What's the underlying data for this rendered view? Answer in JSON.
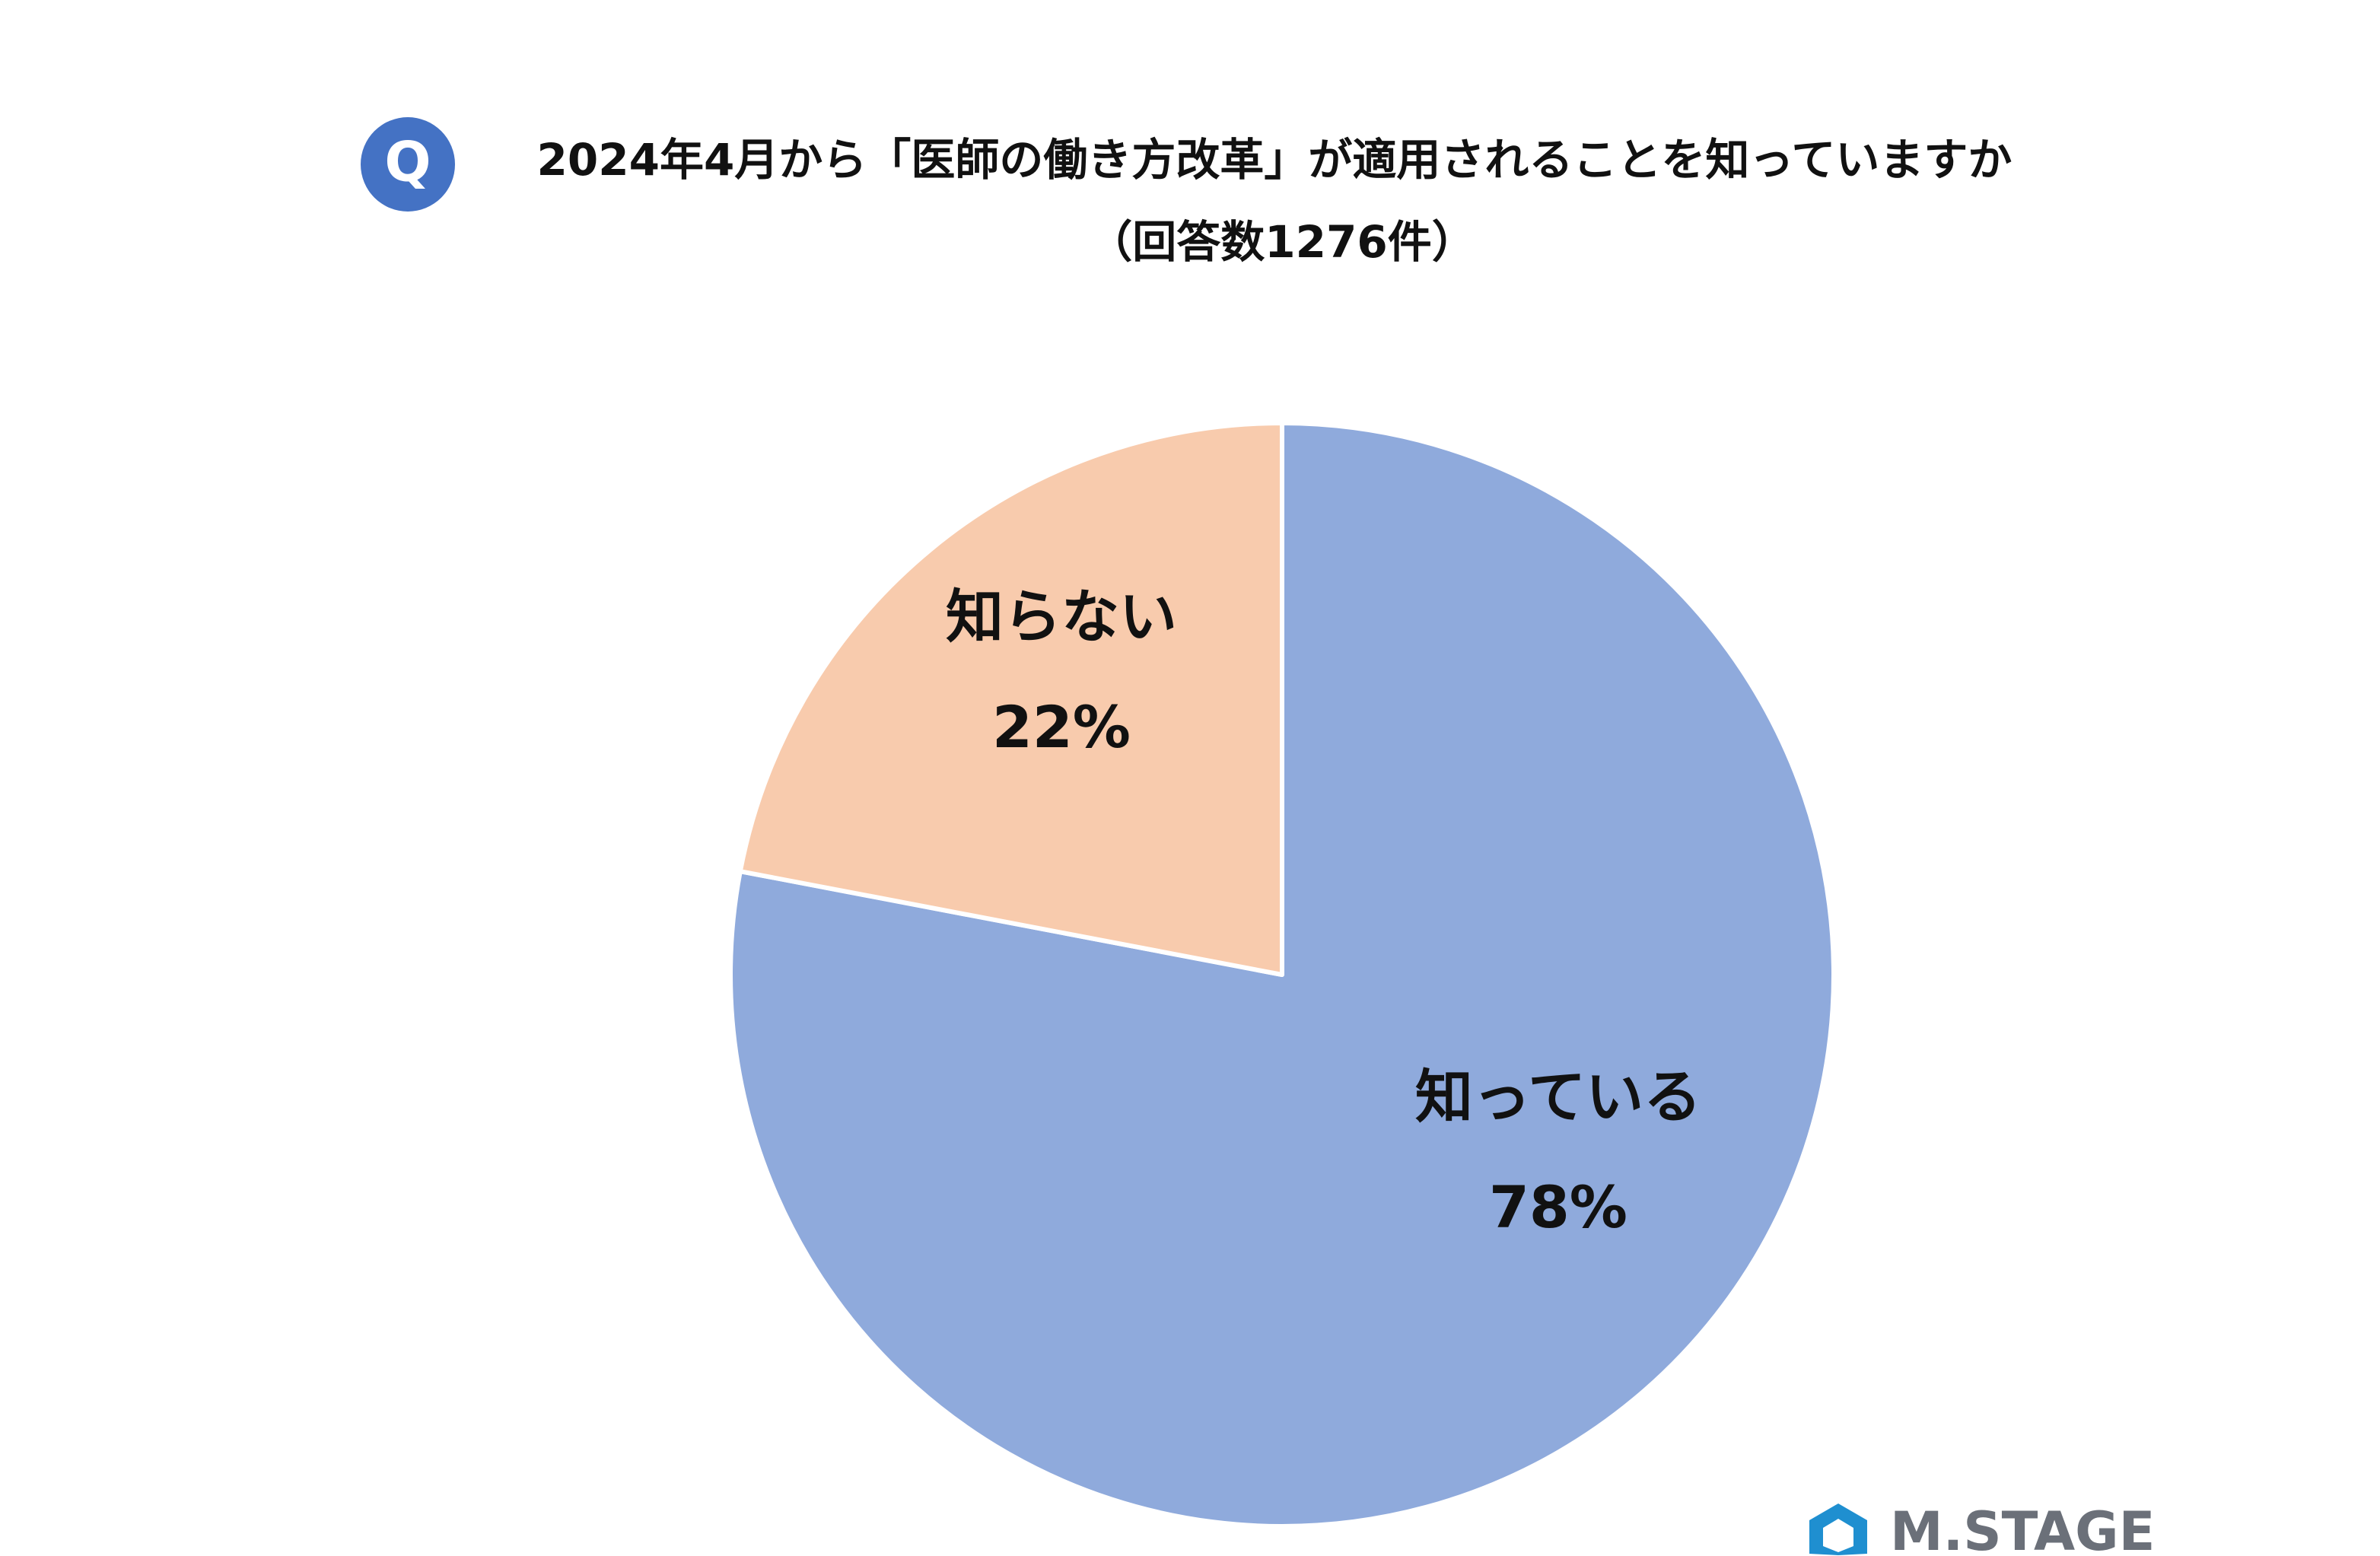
{
  "chart_data": {
    "type": "pie",
    "title": "2024年4月から「医師の働き方改革」が適用されることを知っていますか",
    "subtitle": "（回答数1276件）",
    "categories": [
      "知っている",
      "知らない"
    ],
    "values": [
      78,
      22
    ],
    "value_labels": [
      "78%",
      "22%"
    ],
    "colors": [
      "#8faadc",
      "#f8cbad"
    ]
  },
  "badge": "Q",
  "logo": "M.STAGE"
}
